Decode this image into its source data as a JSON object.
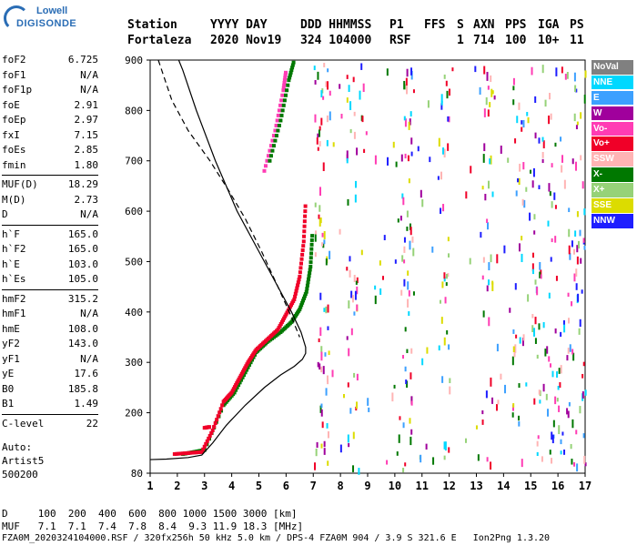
{
  "logo": {
    "line1": "Lowell",
    "line2": "DIGISONDE"
  },
  "header": {
    "labels": [
      "Station",
      "YYYY DAY",
      "DDD HHMMSS",
      "P1",
      "FFS",
      "S",
      "AXN",
      "PPS",
      "IGA",
      "PS"
    ],
    "station": "Fortaleza",
    "year_day": "2020 Nov19",
    "ddd_time": "324 104000",
    "p1": "RSF",
    "s": "1",
    "axn": "714",
    "pps": "100",
    "iga": "10+",
    "ps": "11"
  },
  "params": {
    "group1": [
      {
        "k": "foF2",
        "v": "6.725"
      },
      {
        "k": "foF1",
        "v": "N/A"
      },
      {
        "k": "foF1p",
        "v": "N/A"
      },
      {
        "k": "foE",
        "v": "2.91"
      },
      {
        "k": "foEp",
        "v": "2.97"
      },
      {
        "k": "fxI",
        "v": "7.15"
      },
      {
        "k": "foEs",
        "v": "2.85"
      },
      {
        "k": "fmin",
        "v": "1.80"
      }
    ],
    "group2": [
      {
        "k": "MUF(D)",
        "v": "18.29"
      },
      {
        "k": "M(D)",
        "v": "2.73"
      },
      {
        "k": "D",
        "v": "N/A"
      }
    ],
    "group3": [
      {
        "k": "h`F",
        "v": "165.0"
      },
      {
        "k": "h`F2",
        "v": "165.0"
      },
      {
        "k": "h`E",
        "v": "103.0"
      },
      {
        "k": "h`Es",
        "v": "105.0"
      }
    ],
    "group4": [
      {
        "k": "hmF2",
        "v": "315.2"
      },
      {
        "k": "hmF1",
        "v": "N/A"
      },
      {
        "k": "hmE",
        "v": "108.0"
      },
      {
        "k": "yF2",
        "v": "143.0"
      },
      {
        "k": "yF1",
        "v": "N/A"
      },
      {
        "k": "yE",
        "v": "17.6"
      },
      {
        "k": "B0",
        "v": "185.8"
      },
      {
        "k": "B1",
        "v": "1.49"
      }
    ],
    "group5": [
      {
        "k": "C-level",
        "v": "22"
      }
    ]
  },
  "auto": {
    "line1": "Auto:",
    "line2": "Artist5",
    "line3": "500200"
  },
  "legend": [
    {
      "label": "NoVal",
      "color": "#808080"
    },
    {
      "label": "NNE",
      "color": "#00d8ff"
    },
    {
      "label": "E",
      "color": "#3ca0ff"
    },
    {
      "label": "W",
      "color": "#a0009c"
    },
    {
      "label": "Vo-",
      "color": "#ff3cb4"
    },
    {
      "label": "Vo+",
      "color": "#f00028"
    },
    {
      "label": "SSW",
      "color": "#ffb4b4"
    },
    {
      "label": "X-",
      "color": "#007800"
    },
    {
      "label": "X+",
      "color": "#96d278"
    },
    {
      "label": "SSE",
      "color": "#dcdc00"
    },
    {
      "label": "NNW",
      "color": "#1e1eff"
    }
  ],
  "footer": {
    "row_d": "D     100  200  400  600  800 1000 1500 3000 [km]",
    "row_muf": "MUF   7.1  7.1  7.4  7.8  8.4  9.3 11.9 18.3 [MHz]",
    "row_file": "FZA0M_2020324104000.RSF / 320fx256h 50 kHz 5.0 km / DPS-4 FZA0M 904 / 3.9 S 321.6 E   Ion2Png 1.3.20"
  },
  "chart_data": {
    "type": "scatter",
    "xlim": [
      1,
      17
    ],
    "ylim": [
      80,
      900
    ],
    "x_ticks": [
      1,
      2,
      3,
      4,
      5,
      6,
      7,
      8,
      9,
      10,
      11,
      12,
      13,
      14,
      15,
      16,
      17
    ],
    "y_ticks": [
      80,
      200,
      300,
      400,
      500,
      600,
      700,
      800,
      900
    ],
    "profile_curve": [
      [
        1.0,
        107
      ],
      [
        1.6,
        108
      ],
      [
        2.4,
        111
      ],
      [
        2.9,
        116
      ],
      [
        3.3,
        140
      ],
      [
        3.8,
        175
      ],
      [
        4.5,
        215
      ],
      [
        5.2,
        250
      ],
      [
        5.8,
        275
      ],
      [
        6.3,
        292
      ],
      [
        6.6,
        306
      ],
      [
        6.72,
        318
      ],
      [
        6.72,
        330
      ],
      [
        6.55,
        360
      ],
      [
        6.2,
        400
      ],
      [
        5.7,
        450
      ],
      [
        5.0,
        520
      ],
      [
        4.2,
        600
      ],
      [
        3.4,
        700
      ],
      [
        2.7,
        800
      ],
      [
        2.2,
        880
      ],
      [
        2.05,
        900
      ]
    ],
    "dashed_curve": [
      [
        1.3,
        900
      ],
      [
        1.8,
        820
      ],
      [
        2.4,
        760
      ],
      [
        3.2,
        700
      ],
      [
        3.9,
        640
      ],
      [
        4.5,
        585
      ],
      [
        5.1,
        520
      ],
      [
        5.7,
        450
      ],
      [
        6.2,
        390
      ],
      [
        6.5,
        350
      ]
    ],
    "o_trace": [
      [
        1.9,
        118
      ],
      [
        2.4,
        120
      ],
      [
        2.9,
        122
      ],
      [
        3.3,
        165
      ],
      [
        3.7,
        222
      ],
      [
        4.0,
        240
      ],
      [
        4.3,
        270
      ],
      [
        4.6,
        300
      ],
      [
        4.9,
        325
      ],
      [
        5.3,
        345
      ],
      [
        5.7,
        365
      ],
      [
        6.0,
        395
      ],
      [
        6.3,
        425
      ],
      [
        6.5,
        470
      ],
      [
        6.65,
        540
      ],
      [
        6.72,
        620
      ]
    ],
    "x_trace": [
      [
        2.2,
        118
      ],
      [
        2.6,
        122
      ],
      [
        3.0,
        126
      ],
      [
        3.7,
        215
      ],
      [
        4.1,
        240
      ],
      [
        4.5,
        280
      ],
      [
        4.9,
        320
      ],
      [
        5.3,
        340
      ],
      [
        5.8,
        360
      ],
      [
        6.2,
        380
      ],
      [
        6.5,
        405
      ],
      [
        6.75,
        440
      ],
      [
        6.9,
        490
      ],
      [
        6.97,
        560
      ]
    ],
    "es_trace": [
      [
        3.0,
        170
      ],
      [
        3.2,
        172
      ]
    ],
    "upper_o_trace": [
      [
        5.2,
        680
      ],
      [
        5.6,
        760
      ],
      [
        5.9,
        840
      ],
      [
        6.0,
        880
      ]
    ],
    "upper_x_trace": [
      [
        5.4,
        700
      ],
      [
        5.8,
        780
      ],
      [
        6.1,
        860
      ],
      [
        6.3,
        900
      ]
    ]
  }
}
